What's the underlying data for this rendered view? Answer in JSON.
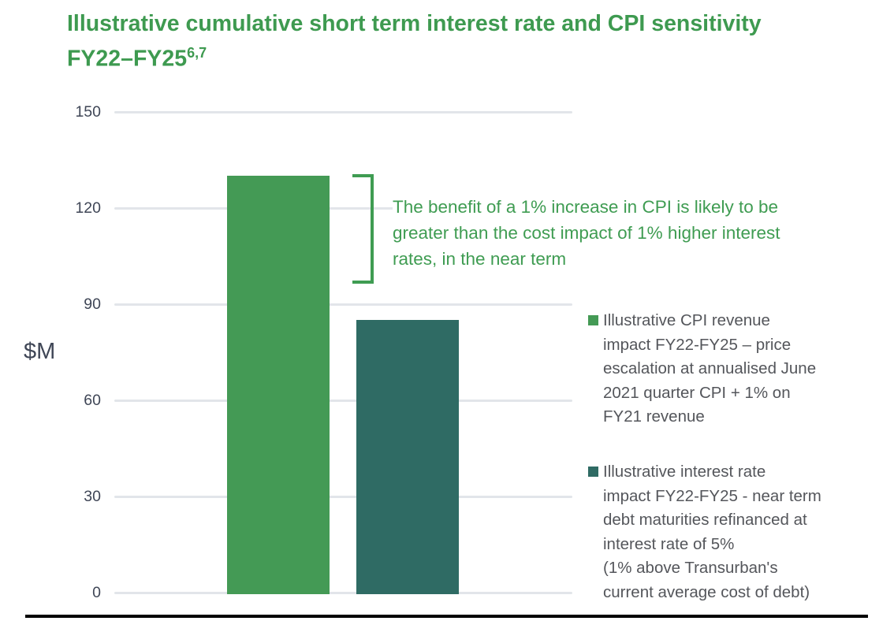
{
  "title": {
    "line1": "Illustrative cumulative short term interest rate and CPI sensitivity",
    "line2": "FY22–FY25",
    "superscript": "6,7"
  },
  "y_axis": {
    "unit_label": "$M",
    "ticks": [
      150,
      120,
      90,
      60,
      30,
      0
    ]
  },
  "annotation": {
    "text": "The benefit of a 1% increase in CPI is likely to be\ngreater than the cost impact of 1% higher interest\nrates, in the near term",
    "color": "#3f9c52"
  },
  "legend": {
    "items": [
      {
        "label": "Illustrative CPI revenue\nimpact FY22-FY25 – price\nescalation at annualised June\n2021 quarter CPI + 1% on\nFY21 revenue",
        "swatch_color": "#449a55"
      },
      {
        "label": "Illustrative interest rate\nimpact FY22-FY25 - near term\ndebt maturities refinanced at\ninterest rate of 5%\n(1% above Transurban's\ncurrent average cost of debt)",
        "swatch_color": "#2f6b64"
      }
    ]
  },
  "chart_data": {
    "type": "bar",
    "title": "Illustrative cumulative short term interest rate and CPI sensitivity FY22–FY25",
    "ylabel": "$M",
    "ylim": [
      0,
      150
    ],
    "yticks": [
      0,
      30,
      60,
      90,
      120,
      150
    ],
    "grid": true,
    "legend_position": "right",
    "categories": [
      "Illustrative CPI revenue impact FY22-FY25 – price escalation at annualised June 2021 quarter CPI + 1% on FY21 revenue",
      "Illustrative interest rate impact FY22-FY25 - near term debt maturities refinanced at interest rate of 5% (1% above Transurban's current average cost of debt)"
    ],
    "values": [
      130,
      85
    ],
    "bar_colors": [
      "#449a55",
      "#2f6b64"
    ]
  },
  "colors": {
    "title_green": "#3e9a50",
    "axis_text": "#3f4656",
    "legend_text": "#54565b",
    "gridline": "#e2e5ea",
    "bottom_rule": "#000000"
  }
}
